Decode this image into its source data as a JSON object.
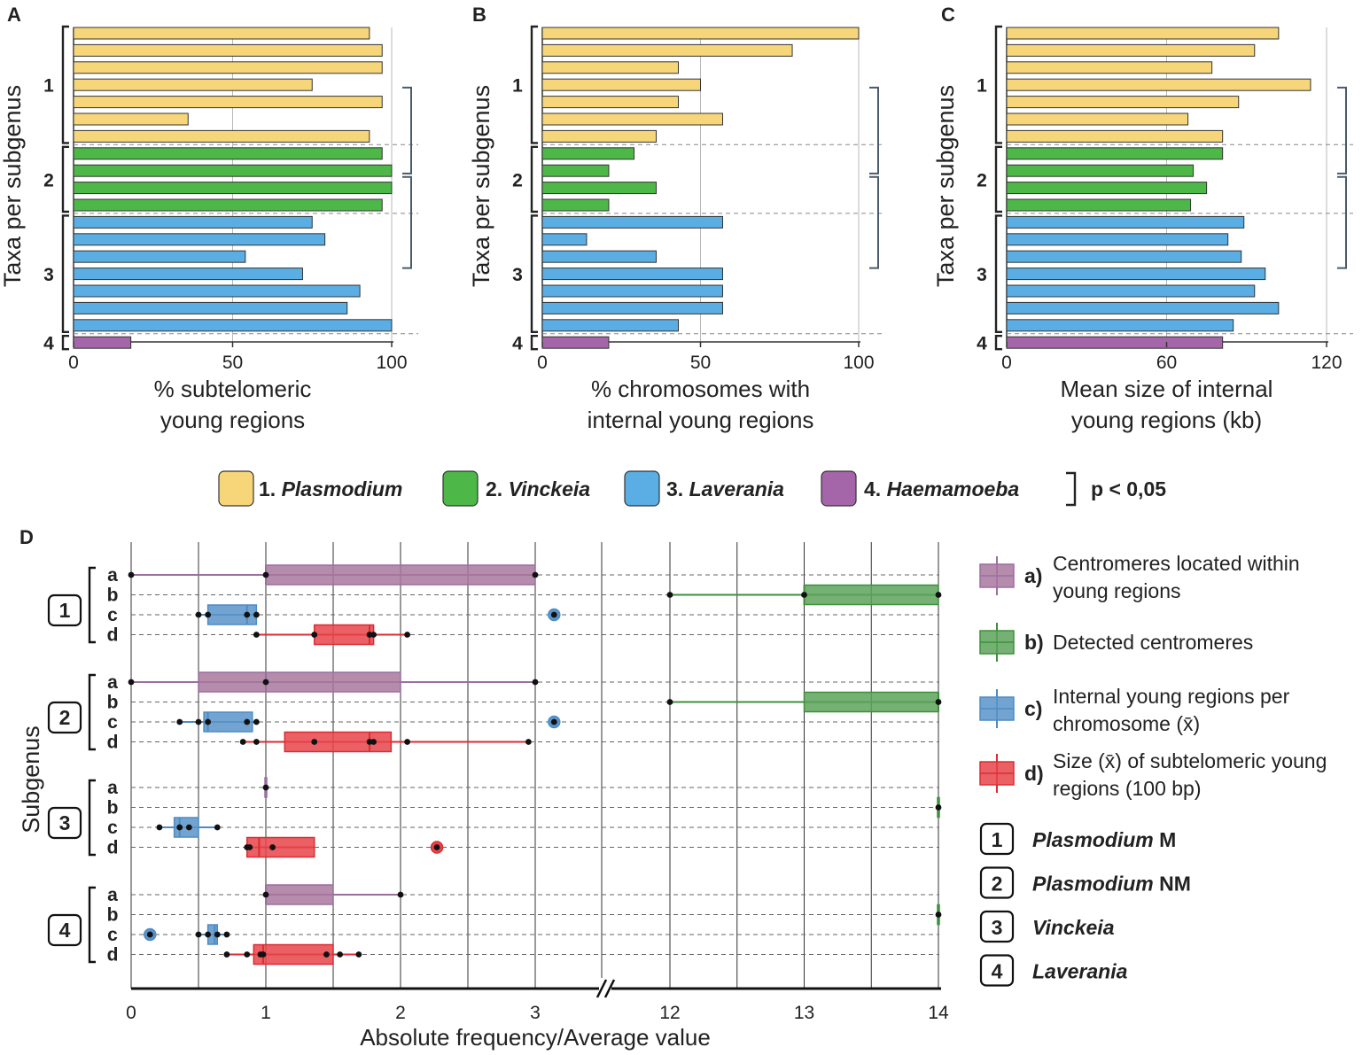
{
  "colors": {
    "plasmodium": "#f7d67a",
    "vinckeia": "#4db848",
    "laverania": "#5aaee3",
    "haemamoeba": "#a466a8",
    "box_a": "#a8789e",
    "box_b": "#5ca35a",
    "box_c": "#5b94c9",
    "box_d": "#e8444a",
    "line_a": "#9a6fa0",
    "line_b": "#3e8f3c",
    "line_c": "#4c8cc4",
    "line_d": "#d92d33"
  },
  "panels": {
    "A": {
      "letter": "A"
    },
    "B": {
      "letter": "B"
    },
    "C": {
      "letter": "C"
    },
    "D": {
      "letter": "D"
    }
  },
  "group_labels": [
    "1",
    "2",
    "3",
    "4"
  ],
  "legend": {
    "items": [
      {
        "num": "1.",
        "name": "Plasmodium",
        "color_key": "plasmodium"
      },
      {
        "num": "2.",
        "name": "Vinckeia",
        "color_key": "vinckeia"
      },
      {
        "num": "3.",
        "name": "Laverania",
        "color_key": "laverania"
      },
      {
        "num": "4.",
        "name": "Haemamoeba",
        "color_key": "haemamoeba"
      }
    ],
    "significance": "p < 0,05"
  },
  "legend_d": {
    "entries": [
      {
        "letter": "a)",
        "lines": [
          "Centromeres located within",
          "young regions"
        ],
        "key": "a"
      },
      {
        "letter": "b)",
        "lines": [
          "Detected centromeres"
        ],
        "key": "b"
      },
      {
        "letter": "c)",
        "lines": [
          "Internal young regions per",
          "chromosome (x̄)"
        ],
        "key": "c"
      },
      {
        "letter": "d)",
        "lines": [
          "Size (x̄) of subtelomeric young",
          "regions (100 bp)"
        ],
        "key": "d"
      }
    ],
    "subgenera": [
      {
        "num": "1",
        "name": "Plasmodium",
        "suffix": " M"
      },
      {
        "num": "2",
        "name": "Plasmodium",
        "suffix": " NM"
      },
      {
        "num": "3",
        "name": "Vinckeia",
        "suffix": ""
      },
      {
        "num": "4",
        "name": "Laverania",
        "suffix": ""
      }
    ]
  },
  "chart_data": [
    {
      "panel": "A",
      "type": "bar",
      "orientation": "horizontal",
      "xlabel": [
        "% subtelomeric",
        "young regions"
      ],
      "ylabel": "Taxa per subgenus",
      "xlim": [
        0,
        100
      ],
      "xticks": [
        0,
        50,
        100
      ],
      "groups": [
        {
          "label": "1",
          "color_key": "plasmodium",
          "values": [
            93,
            97,
            97,
            75,
            97,
            36,
            93
          ]
        },
        {
          "label": "2",
          "color_key": "vinckeia",
          "values": [
            97,
            100,
            100,
            97
          ]
        },
        {
          "label": "3",
          "color_key": "laverania",
          "values": [
            75,
            79,
            54,
            72,
            90,
            86,
            100
          ]
        },
        {
          "label": "4",
          "color_key": "haemamoeba",
          "values": [
            18
          ]
        }
      ],
      "significance_brackets": [
        [
          "1",
          "2"
        ],
        [
          "2",
          "3"
        ]
      ]
    },
    {
      "panel": "B",
      "type": "bar",
      "orientation": "horizontal",
      "xlabel": [
        "% chromosomes with",
        "internal young regions"
      ],
      "ylabel": "Taxa per subgenus",
      "xlim": [
        0,
        100
      ],
      "xticks": [
        0,
        50,
        100
      ],
      "groups": [
        {
          "label": "1",
          "color_key": "plasmodium",
          "values": [
            100,
            79,
            43,
            50,
            43,
            57,
            36
          ]
        },
        {
          "label": "2",
          "color_key": "vinckeia",
          "values": [
            29,
            21,
            36,
            21
          ]
        },
        {
          "label": "3",
          "color_key": "laverania",
          "values": [
            57,
            14,
            36,
            57,
            57,
            57,
            43
          ]
        },
        {
          "label": "4",
          "color_key": "haemamoeba",
          "values": [
            21
          ]
        }
      ],
      "significance_brackets": [
        [
          "1",
          "2"
        ],
        [
          "2",
          "3"
        ]
      ]
    },
    {
      "panel": "C",
      "type": "bar",
      "orientation": "horizontal",
      "xlabel": [
        "Mean size of internal",
        "young regions (kb)"
      ],
      "ylabel": "Taxa per subgenus",
      "xlim": [
        0,
        120
      ],
      "xticks": [
        0,
        60,
        120
      ],
      "groups": [
        {
          "label": "1",
          "color_key": "plasmodium",
          "values": [
            102,
            93,
            77,
            114,
            87,
            68,
            81
          ]
        },
        {
          "label": "2",
          "color_key": "vinckeia",
          "values": [
            81,
            70,
            75,
            69
          ]
        },
        {
          "label": "3",
          "color_key": "laverania",
          "values": [
            89,
            83,
            88,
            97,
            93,
            102,
            85
          ]
        },
        {
          "label": "4",
          "color_key": "haemamoeba",
          "values": [
            81
          ]
        }
      ],
      "significance_brackets": [
        [
          "1",
          "2"
        ],
        [
          "2",
          "3"
        ]
      ]
    },
    {
      "panel": "D",
      "type": "box",
      "orientation": "horizontal",
      "xlabel": "Absolute frequency/Average value",
      "ylabel": "Subgenus",
      "xticks_left": [
        "0",
        "1",
        "2",
        "3"
      ],
      "xticks_right": [
        "12",
        "13",
        "14"
      ],
      "axis_break": true,
      "row_labels": [
        "a",
        "b",
        "c",
        "d"
      ],
      "groups": [
        {
          "label": "1",
          "rows": [
            {
              "key": "a",
              "min": 0,
              "q1": 1,
              "med": 1,
              "q3": 3,
              "max": 3,
              "points": [
                0,
                1,
                3
              ]
            },
            {
              "key": "b",
              "min": 12,
              "q1": 13,
              "med": 13,
              "q3": 14,
              "max": 14,
              "points": [
                12,
                13,
                14
              ]
            },
            {
              "key": "c",
              "min": 0.5,
              "q1": 0.57,
              "med": 0.86,
              "q3": 0.93,
              "max": 0.93,
              "points": [
                0.5,
                0.57,
                0.86,
                0.93
              ],
              "outliers": [
                3.14
              ]
            },
            {
              "key": "d",
              "min": 0.93,
              "q1": 1.36,
              "med": 1.77,
              "q3": 1.8,
              "max": 2.05,
              "points": [
                0.93,
                1.36,
                1.77,
                1.8,
                2.05
              ]
            }
          ]
        },
        {
          "label": "2",
          "rows": [
            {
              "key": "a",
              "min": 0,
              "q1": 0.5,
              "med": 1,
              "q3": 2,
              "max": 3,
              "points": [
                0,
                1,
                3
              ]
            },
            {
              "key": "b",
              "min": 12,
              "q1": 13,
              "med": 14,
              "q3": 14,
              "max": 14,
              "points": [
                12,
                14
              ]
            },
            {
              "key": "c",
              "min": 0.36,
              "q1": 0.54,
              "med": 0.57,
              "q3": 0.9,
              "max": 0.93,
              "points": [
                0.36,
                0.5,
                0.57,
                0.86,
                0.93
              ],
              "outliers": [
                3.14
              ]
            },
            {
              "key": "d",
              "min": 0.83,
              "q1": 1.14,
              "med": 1.77,
              "q3": 1.93,
              "max": 2.95,
              "points": [
                0.83,
                0.93,
                1.36,
                1.77,
                1.8,
                2.05,
                2.95
              ]
            }
          ]
        },
        {
          "label": "3",
          "rows": [
            {
              "key": "a",
              "min": 1,
              "q1": 1,
              "med": 1,
              "q3": 1,
              "max": 1,
              "points": [
                1
              ]
            },
            {
              "key": "b",
              "min": 14,
              "q1": 14,
              "med": 14,
              "q3": 14,
              "max": 14,
              "points": [
                14
              ]
            },
            {
              "key": "c",
              "min": 0.21,
              "q1": 0.32,
              "med": 0.36,
              "q3": 0.5,
              "max": 0.64,
              "points": [
                0.21,
                0.36,
                0.43,
                0.64
              ]
            },
            {
              "key": "d",
              "min": 0.86,
              "q1": 0.86,
              "med": 0.95,
              "q3": 1.36,
              "max": 1.36,
              "points": [
                0.86,
                0.88,
                1.05
              ],
              "outliers": [
                2.27
              ]
            }
          ]
        },
        {
          "label": "4",
          "rows": [
            {
              "key": "a",
              "min": 1,
              "q1": 1,
              "med": 1,
              "q3": 1.5,
              "max": 2,
              "points": [
                1,
                2
              ]
            },
            {
              "key": "b",
              "min": 14,
              "q1": 14,
              "med": 14,
              "q3": 14,
              "max": 14,
              "points": [
                14
              ]
            },
            {
              "key": "c",
              "min": 0.5,
              "q1": 0.57,
              "med": 0.62,
              "q3": 0.64,
              "max": 0.71,
              "points": [
                0.5,
                0.57,
                0.64,
                0.71
              ],
              "outliers": [
                0.14
              ]
            },
            {
              "key": "d",
              "min": 0.71,
              "q1": 0.91,
              "med": 0.98,
              "q3": 1.5,
              "max": 1.69,
              "points": [
                0.71,
                0.86,
                0.96,
                0.98,
                1.45,
                1.55,
                1.69
              ]
            }
          ]
        }
      ]
    }
  ]
}
